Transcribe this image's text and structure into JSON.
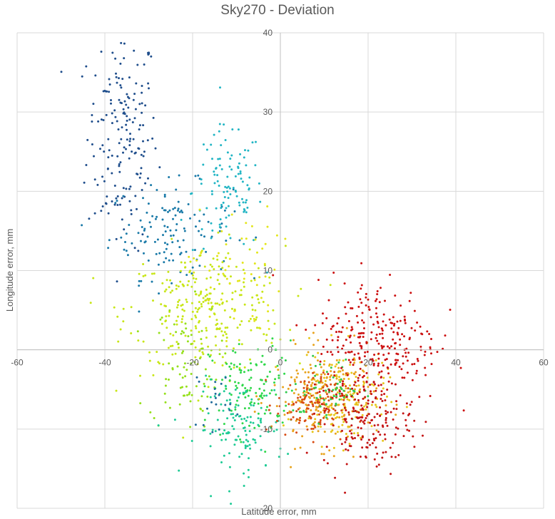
{
  "chart_data": {
    "type": "scatter",
    "title": "Sky270 - Deviation",
    "xlabel": "Latitude error, mm",
    "ylabel": "Longitude error, mm",
    "xlim": [
      -60,
      60
    ],
    "ylim": [
      -20,
      40
    ],
    "xticks": [
      -60,
      -40,
      -20,
      0,
      20,
      40,
      60
    ],
    "yticks": [
      -20,
      -10,
      0,
      10,
      20,
      30,
      40
    ],
    "grid": true,
    "legend": "none",
    "clusters": [
      {
        "color": "#1f4e8c",
        "center": [
          -36,
          27
        ],
        "spread": [
          4,
          7
        ],
        "count": 180
      },
      {
        "color": "#1a7aa8",
        "center": [
          -25,
          15
        ],
        "spread": [
          7,
          3
        ],
        "count": 130
      },
      {
        "color": "#22b5c4",
        "center": [
          -12,
          20
        ],
        "spread": [
          4,
          4
        ],
        "count": 110
      },
      {
        "color": "#c8e617",
        "center": [
          -17,
          5
        ],
        "spread": [
          9,
          4
        ],
        "count": 280
      },
      {
        "color": "#95e01a",
        "center": [
          -22,
          -2
        ],
        "spread": [
          4,
          4
        ],
        "count": 80
      },
      {
        "color": "#e3e61c",
        "center": [
          -10,
          10
        ],
        "spread": [
          5,
          4
        ],
        "count": 60
      },
      {
        "color": "#2fd84a",
        "center": [
          -6,
          -5
        ],
        "spread": [
          5,
          3
        ],
        "count": 120
      },
      {
        "color": "#1ecb95",
        "center": [
          -9,
          -10
        ],
        "spread": [
          5,
          3
        ],
        "count": 120
      },
      {
        "color": "#1f6a9a",
        "center": [
          -15,
          -6
        ],
        "spread": [
          2,
          2
        ],
        "count": 20
      },
      {
        "color": "#e8a31c",
        "center": [
          10,
          -6
        ],
        "spread": [
          6,
          3
        ],
        "count": 200
      },
      {
        "color": "#e6c61a",
        "center": [
          14,
          -6
        ],
        "spread": [
          5,
          3
        ],
        "count": 150
      },
      {
        "color": "#d84a12",
        "center": [
          7,
          -7
        ],
        "spread": [
          4,
          2
        ],
        "count": 130
      },
      {
        "color": "#2fc94d",
        "center": [
          11,
          -5
        ],
        "spread": [
          4,
          2
        ],
        "count": 60
      },
      {
        "color": "#cc1010",
        "center": [
          22,
          1
        ],
        "spread": [
          7,
          4
        ],
        "count": 280
      },
      {
        "color": "#c41414",
        "center": [
          20,
          -9
        ],
        "spread": [
          5,
          3
        ],
        "count": 170
      }
    ]
  }
}
